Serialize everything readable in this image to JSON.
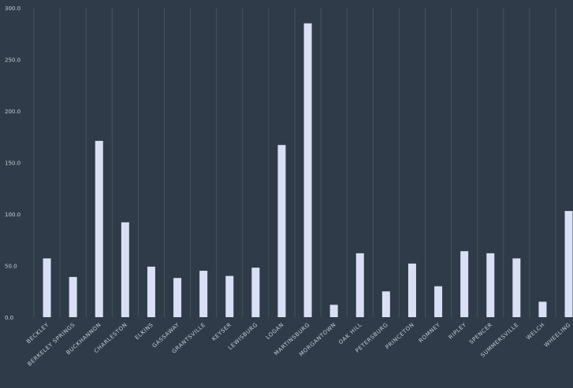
{
  "chart_data": {
    "type": "bar",
    "categories": [
      "BECKLEY",
      "BERKELEY SPRINGS",
      "BUCKHANNON",
      "CHARLESTON",
      "ELKINS",
      "GASSAWAY",
      "GRANTSVILLE",
      "KEYSER",
      "LEWISBURG",
      "LOGAN",
      "MARTINSBURG",
      "MORGANTOWN",
      "OAK HILL",
      "PETERSBURG",
      "PRINCETON",
      "ROMNEY",
      "RIPLEY",
      "SPENCER",
      "SUMMERSVILLE",
      "WELCH",
      "WHEELING"
    ],
    "values": [
      57,
      39,
      171,
      92,
      49,
      38,
      45,
      40,
      48,
      167,
      285,
      12,
      62,
      25,
      52,
      30,
      64,
      62,
      57,
      15,
      103
    ],
    "ylim": [
      0,
      300
    ],
    "yticks": [
      "0.0",
      "50.0",
      "100.0",
      "150.0",
      "200.0",
      "250.0",
      "300.0"
    ],
    "grid": "vertical",
    "colors": {
      "background": "#2f3b48",
      "bar": "#d9dff4",
      "grid": "#47535f",
      "text": "#c9ced6"
    }
  }
}
